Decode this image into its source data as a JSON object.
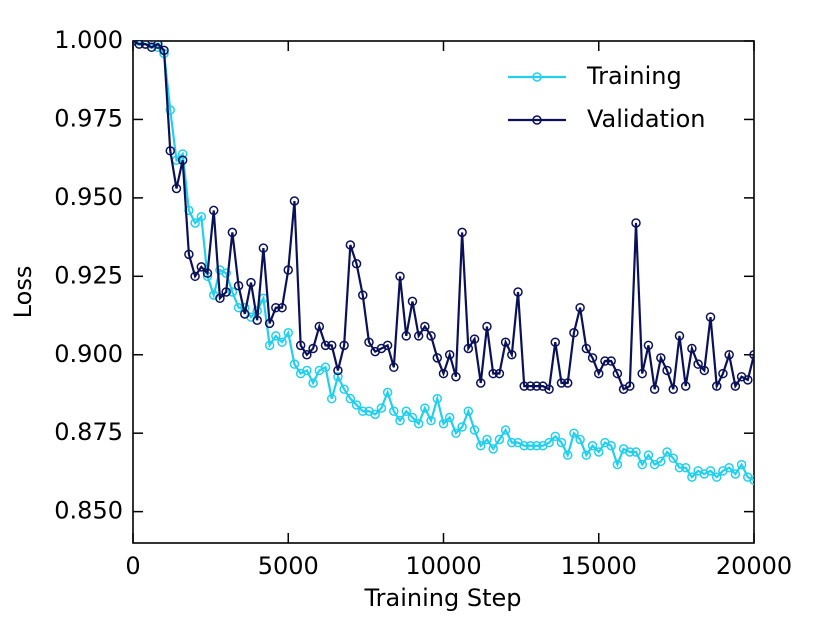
{
  "chart_data": {
    "type": "line",
    "xlabel": "Training Step",
    "ylabel": "Loss",
    "x": [
      0,
      200,
      400,
      600,
      800,
      1000,
      1200,
      1400,
      1600,
      1800,
      2000,
      2200,
      2400,
      2600,
      2800,
      3000,
      3200,
      3400,
      3600,
      3800,
      4000,
      4200,
      4400,
      4600,
      4800,
      5000,
      5200,
      5400,
      5600,
      5800,
      6000,
      6200,
      6400,
      6600,
      6800,
      7000,
      7200,
      7400,
      7600,
      7800,
      8000,
      8200,
      8400,
      8600,
      8800,
      9000,
      9200,
      9400,
      9600,
      9800,
      10000,
      10200,
      10400,
      10600,
      10800,
      11000,
      11200,
      11400,
      11600,
      11800,
      12000,
      12200,
      12400,
      12600,
      12800,
      13000,
      13200,
      13400,
      13600,
      13800,
      14000,
      14200,
      14400,
      14600,
      14800,
      15000,
      15200,
      15400,
      15600,
      15800,
      16000,
      16200,
      16400,
      16600,
      16800,
      17000,
      17200,
      17400,
      17600,
      17800,
      18000,
      18200,
      18400,
      18600,
      18800,
      19000,
      19200,
      19400,
      19600,
      19800,
      20000
    ],
    "series": [
      {
        "name": "Training",
        "color": "#22d0ee",
        "values": [
          1.0,
          1.0,
          0.999,
          0.999,
          0.998,
          0.996,
          0.978,
          0.962,
          0.964,
          0.946,
          0.942,
          0.944,
          0.925,
          0.919,
          0.927,
          0.926,
          0.92,
          0.915,
          0.915,
          0.912,
          0.914,
          0.918,
          0.903,
          0.906,
          0.904,
          0.907,
          0.897,
          0.894,
          0.895,
          0.891,
          0.895,
          0.896,
          0.886,
          0.893,
          0.889,
          0.886,
          0.884,
          0.882,
          0.882,
          0.881,
          0.883,
          0.888,
          0.882,
          0.879,
          0.882,
          0.88,
          0.878,
          0.883,
          0.879,
          0.886,
          0.878,
          0.88,
          0.875,
          0.877,
          0.882,
          0.876,
          0.871,
          0.873,
          0.87,
          0.873,
          0.876,
          0.872,
          0.872,
          0.871,
          0.871,
          0.871,
          0.871,
          0.872,
          0.874,
          0.872,
          0.868,
          0.875,
          0.873,
          0.868,
          0.871,
          0.869,
          0.872,
          0.871,
          0.865,
          0.87,
          0.869,
          0.869,
          0.865,
          0.868,
          0.865,
          0.866,
          0.869,
          0.867,
          0.864,
          0.864,
          0.861,
          0.863,
          0.862,
          0.863,
          0.861,
          0.863,
          0.864,
          0.862,
          0.865,
          0.861,
          0.86
        ]
      },
      {
        "name": "Validation",
        "color": "#0a1158",
        "values": [
          1.0,
          0.999,
          0.999,
          0.998,
          0.999,
          0.997,
          0.965,
          0.953,
          0.962,
          0.932,
          0.925,
          0.928,
          0.926,
          0.946,
          0.918,
          0.92,
          0.939,
          0.922,
          0.913,
          0.923,
          0.911,
          0.934,
          0.91,
          0.915,
          0.915,
          0.927,
          0.949,
          0.903,
          0.9,
          0.902,
          0.909,
          0.903,
          0.903,
          0.895,
          0.903,
          0.935,
          0.929,
          0.919,
          0.904,
          0.901,
          0.902,
          0.903,
          0.896,
          0.925,
          0.906,
          0.917,
          0.906,
          0.909,
          0.906,
          0.899,
          0.894,
          0.9,
          0.893,
          0.939,
          0.902,
          0.905,
          0.891,
          0.909,
          0.894,
          0.894,
          0.904,
          0.9,
          0.92,
          0.89,
          0.89,
          0.89,
          0.89,
          0.889,
          0.904,
          0.891,
          0.891,
          0.907,
          0.915,
          0.902,
          0.899,
          0.894,
          0.898,
          0.898,
          0.894,
          0.889,
          0.89,
          0.942,
          0.894,
          0.903,
          0.889,
          0.899,
          0.895,
          0.889,
          0.906,
          0.89,
          0.902,
          0.897,
          0.895,
          0.912,
          0.89,
          0.894,
          0.9,
          0.89,
          0.893,
          0.892,
          0.9
        ]
      }
    ],
    "xlim": [
      0,
      20000
    ],
    "xticks": [
      0,
      5000,
      10000,
      15000,
      20000
    ],
    "ylim": [
      0.84,
      1.0
    ],
    "yticks": [
      {
        "value": 0.85,
        "label": "0.850"
      },
      {
        "value": 0.875,
        "label": "0.875"
      },
      {
        "value": 0.9,
        "label": "0.900"
      },
      {
        "value": 0.925,
        "label": "0.925"
      },
      {
        "value": 0.95,
        "label": "0.950"
      },
      {
        "value": 0.975,
        "label": "0.975"
      },
      {
        "value": 1.0,
        "label": "1.000"
      }
    ],
    "legend": "upper right",
    "grid": false
  }
}
